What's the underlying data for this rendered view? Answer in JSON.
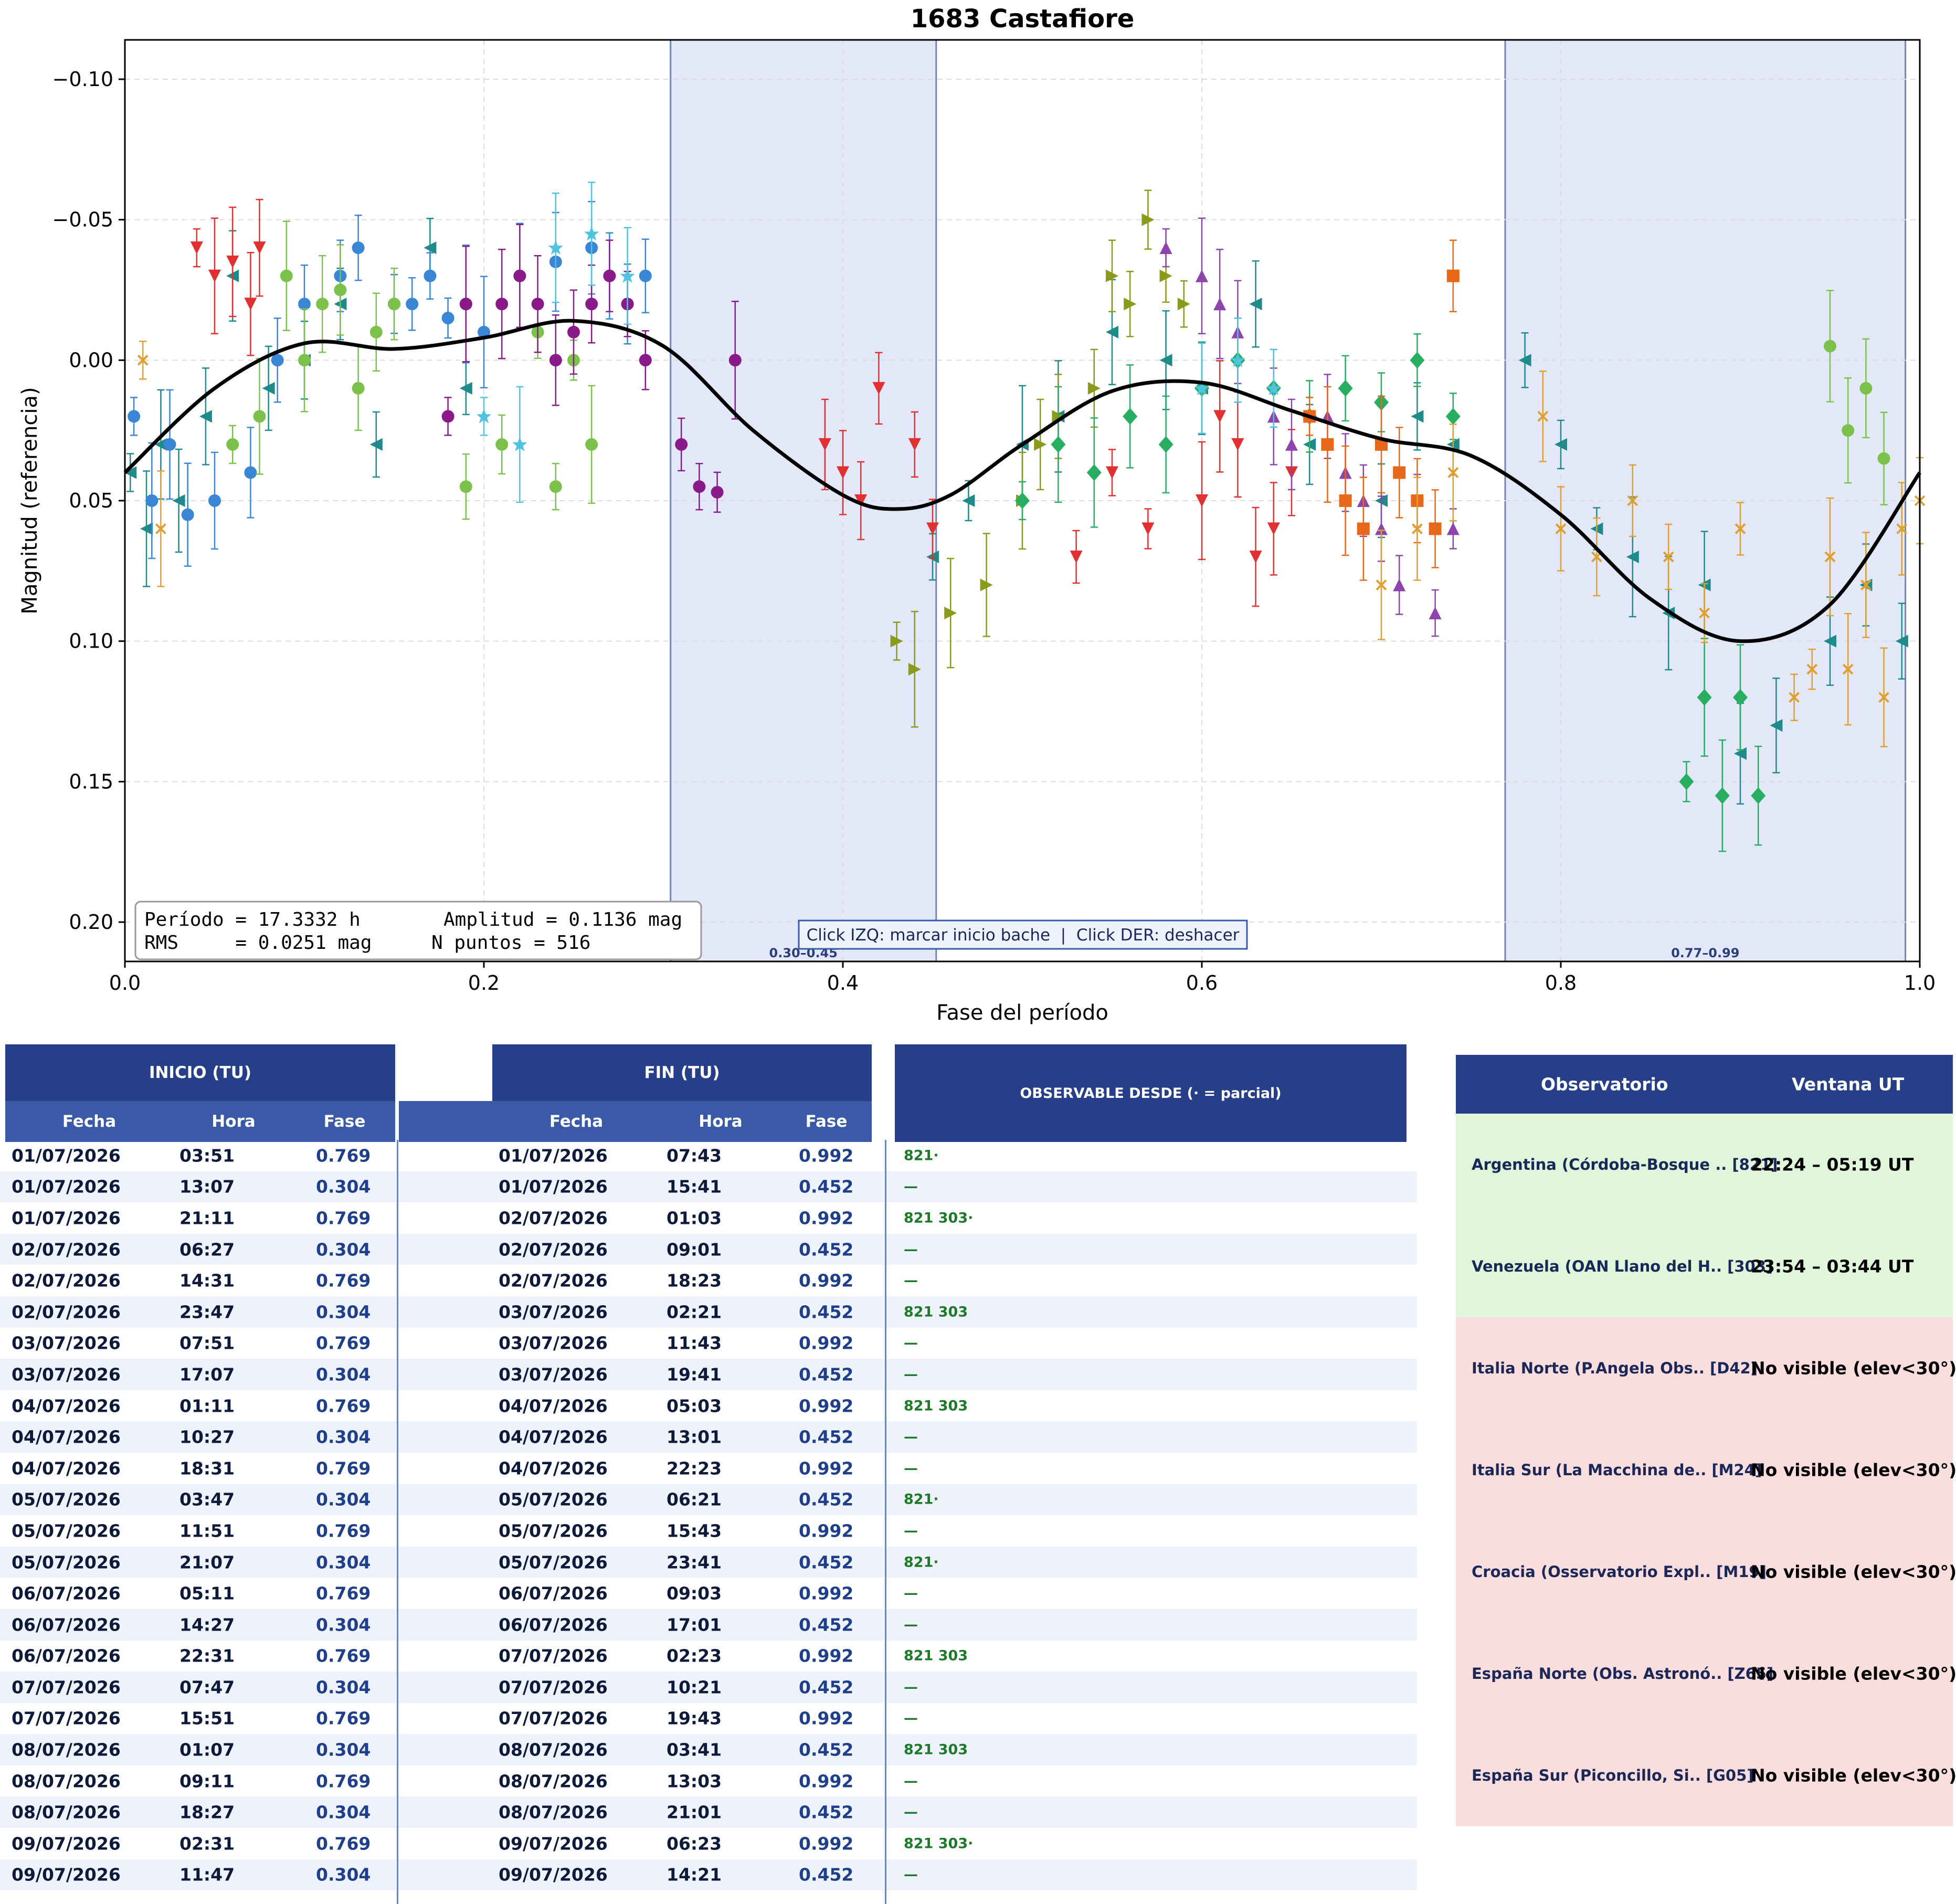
{
  "chart_data": {
    "type": "scatter",
    "title": "1683 Castafiore",
    "xlabel": "Fase del período",
    "ylabel": "Magnitud (referencia)",
    "xlim": [
      0.0,
      1.0
    ],
    "ylim": [
      0.214,
      -0.114
    ],
    "inverted_y": true,
    "grid": true,
    "xticks": [
      "0.0",
      "0.2",
      "0.4",
      "0.6",
      "0.8",
      "1.0"
    ],
    "yticks": [
      "−0.10",
      "−0.05",
      "0.00",
      "0.05",
      "0.10",
      "0.15",
      "0.20"
    ],
    "stats": [
      "Período = 17.3332 h",
      "Amplitud = 0.1136 mag",
      "RMS     = 0.0251 mag",
      "N puntos = 516"
    ],
    "hint": "Click IZQ: marcar inicio bache  |  Click DER: deshacer",
    "gaps": [
      {
        "label": "0.30–0.45",
        "start": 0.304,
        "end": 0.452
      },
      {
        "label": "0.77–0.99",
        "start": 0.769,
        "end": 0.992
      }
    ],
    "fit_curve": {
      "x": [
        0.0,
        0.05,
        0.1,
        0.15,
        0.2,
        0.25,
        0.3,
        0.35,
        0.4,
        0.43,
        0.46,
        0.5,
        0.55,
        0.6,
        0.65,
        0.7,
        0.75,
        0.8,
        0.85,
        0.9,
        0.95,
        1.0
      ],
      "y": [
        0.04,
        0.01,
        -0.006,
        -0.004,
        -0.008,
        -0.014,
        -0.005,
        0.025,
        0.048,
        0.053,
        0.048,
        0.03,
        0.011,
        0.008,
        0.018,
        0.028,
        0.034,
        0.055,
        0.085,
        0.1,
        0.087,
        0.04
      ]
    },
    "series": [
      {
        "color": "#1f8a8a",
        "marker": "tri-left",
        "x": [
          0.003,
          0.012,
          0.02,
          0.03,
          0.045,
          0.06,
          0.08,
          0.1,
          0.12,
          0.14,
          0.17,
          0.19,
          0.45,
          0.47,
          0.5,
          0.52,
          0.55,
          0.58,
          0.6,
          0.63,
          0.66,
          0.7,
          0.72,
          0.74,
          0.78,
          0.8,
          0.82,
          0.84,
          0.86,
          0.88,
          0.9,
          0.92,
          0.95,
          0.97,
          0.99
        ],
        "y": [
          0.04,
          0.06,
          0.03,
          0.05,
          0.02,
          -0.03,
          0.01,
          0.0,
          -0.02,
          0.03,
          -0.04,
          0.01,
          0.07,
          0.05,
          0.03,
          0.02,
          -0.01,
          0.0,
          0.01,
          -0.02,
          0.03,
          0.05,
          0.02,
          0.03,
          0.0,
          0.03,
          0.06,
          0.07,
          0.09,
          0.08,
          0.14,
          0.13,
          0.1,
          0.08,
          0.1
        ]
      },
      {
        "color": "#3a86d4",
        "marker": "circle",
        "x": [
          0.005,
          0.015,
          0.025,
          0.035,
          0.05,
          0.07,
          0.085,
          0.1,
          0.12,
          0.13,
          0.15,
          0.16,
          0.17,
          0.18,
          0.19,
          0.2,
          0.22,
          0.24,
          0.26,
          0.27,
          0.28,
          0.29
        ],
        "y": [
          0.02,
          0.05,
          0.03,
          0.055,
          0.05,
          0.04,
          0.0,
          -0.02,
          -0.03,
          -0.04,
          -0.02,
          -0.02,
          -0.03,
          -0.015,
          -0.02,
          -0.01,
          -0.03,
          -0.035,
          -0.04,
          -0.03,
          -0.02,
          -0.03
        ]
      },
      {
        "color": "#7cc24a",
        "marker": "hexagon",
        "x": [
          0.06,
          0.075,
          0.09,
          0.1,
          0.11,
          0.12,
          0.13,
          0.14,
          0.15,
          0.19,
          0.21,
          0.23,
          0.24,
          0.25,
          0.26,
          0.95,
          0.96,
          0.97,
          0.98
        ],
        "y": [
          0.03,
          0.02,
          -0.03,
          0.0,
          -0.02,
          -0.025,
          0.01,
          -0.01,
          -0.02,
          0.045,
          0.03,
          -0.01,
          0.045,
          0.0,
          0.03,
          -0.005,
          0.025,
          0.01,
          0.035
        ]
      },
      {
        "color": "#8a1a8a",
        "marker": "hexagon",
        "x": [
          0.18,
          0.19,
          0.21,
          0.22,
          0.23,
          0.24,
          0.25,
          0.26,
          0.27,
          0.28,
          0.29,
          0.31,
          0.32,
          0.33,
          0.34
        ],
        "y": [
          0.02,
          -0.02,
          -0.02,
          -0.03,
          -0.02,
          0.0,
          -0.01,
          -0.02,
          -0.03,
          -0.02,
          0.0,
          0.03,
          0.045,
          0.047,
          0.0
        ]
      },
      {
        "color": "#e03030",
        "marker": "tri-down",
        "x": [
          0.04,
          0.05,
          0.06,
          0.07,
          0.075,
          0.39,
          0.4,
          0.41,
          0.42,
          0.44,
          0.45,
          0.53,
          0.55,
          0.57,
          0.6,
          0.61,
          0.62,
          0.63,
          0.64,
          0.65
        ],
        "y": [
          -0.04,
          -0.03,
          -0.035,
          -0.02,
          -0.04,
          0.03,
          0.04,
          0.05,
          0.01,
          0.03,
          0.06,
          0.07,
          0.04,
          0.06,
          0.05,
          0.02,
          0.03,
          0.07,
          0.06,
          0.04
        ]
      },
      {
        "color": "#8a9a1a",
        "marker": "tri-right",
        "x": [
          0.43,
          0.44,
          0.46,
          0.48,
          0.5,
          0.51,
          0.52,
          0.54,
          0.55,
          0.56,
          0.57,
          0.58,
          0.59
        ],
        "y": [
          0.1,
          0.11,
          0.09,
          0.08,
          0.05,
          0.03,
          0.02,
          0.01,
          -0.03,
          -0.02,
          -0.05,
          -0.03,
          -0.02
        ]
      },
      {
        "color": "#8e44ad",
        "marker": "tri-up",
        "x": [
          0.58,
          0.6,
          0.61,
          0.62,
          0.64,
          0.65,
          0.67,
          0.68,
          0.69,
          0.7,
          0.71,
          0.72,
          0.73,
          0.74
        ],
        "y": [
          -0.04,
          -0.03,
          -0.02,
          -0.01,
          0.02,
          0.03,
          0.02,
          0.04,
          0.05,
          0.06,
          0.08,
          0.05,
          0.09,
          0.06
        ]
      },
      {
        "color": "#27ae60",
        "marker": "diamond",
        "x": [
          0.5,
          0.52,
          0.54,
          0.56,
          0.58,
          0.6,
          0.62,
          0.64,
          0.66,
          0.68,
          0.7,
          0.72,
          0.74,
          0.87,
          0.88,
          0.89,
          0.9,
          0.91
        ],
        "y": [
          0.05,
          0.03,
          0.04,
          0.02,
          0.03,
          0.01,
          0.0,
          0.01,
          0.02,
          0.01,
          0.015,
          0.0,
          0.02,
          0.15,
          0.12,
          0.155,
          0.12,
          0.155
        ]
      },
      {
        "color": "#e8681a",
        "marker": "square",
        "x": [
          0.66,
          0.67,
          0.68,
          0.69,
          0.7,
          0.71,
          0.72,
          0.73,
          0.74
        ],
        "y": [
          0.02,
          0.03,
          0.05,
          0.06,
          0.03,
          0.04,
          0.05,
          0.06,
          -0.03
        ]
      },
      {
        "color": "#e0a030",
        "marker": "x",
        "x": [
          0.01,
          0.02,
          0.7,
          0.72,
          0.74,
          0.79,
          0.8,
          0.82,
          0.84,
          0.86,
          0.88,
          0.9,
          0.93,
          0.94,
          0.95,
          0.96,
          0.97,
          0.98,
          0.99,
          1.0
        ],
        "y": [
          0.0,
          0.06,
          0.08,
          0.06,
          0.04,
          0.02,
          0.06,
          0.07,
          0.05,
          0.07,
          0.09,
          0.06,
          0.12,
          0.11,
          0.07,
          0.11,
          0.08,
          0.12,
          0.06,
          0.05
        ]
      },
      {
        "color": "#4fc3e0",
        "marker": "star",
        "x": [
          0.2,
          0.22,
          0.24,
          0.26,
          0.28,
          0.6,
          0.62,
          0.64
        ],
        "y": [
          0.02,
          0.03,
          -0.04,
          -0.045,
          -0.03,
          0.01,
          0.0,
          0.01
        ]
      }
    ]
  },
  "schedule": {
    "headers": {
      "inicio": "INICIO (TU)",
      "fin": "FIN (TU)",
      "observable": "OBSERVABLE DESDE  (· = parcial)",
      "fecha": "Fecha",
      "hora": "Hora",
      "fase": "Fase"
    },
    "rows": [
      [
        "01/07/2026",
        "03:51",
        "0.769",
        "01/07/2026",
        "07:43",
        "0.992",
        "821·"
      ],
      [
        "01/07/2026",
        "13:07",
        "0.304",
        "01/07/2026",
        "15:41",
        "0.452",
        "—"
      ],
      [
        "01/07/2026",
        "21:11",
        "0.769",
        "02/07/2026",
        "01:03",
        "0.992",
        "821 303·"
      ],
      [
        "02/07/2026",
        "06:27",
        "0.304",
        "02/07/2026",
        "09:01",
        "0.452",
        "—"
      ],
      [
        "02/07/2026",
        "14:31",
        "0.769",
        "02/07/2026",
        "18:23",
        "0.992",
        "—"
      ],
      [
        "02/07/2026",
        "23:47",
        "0.304",
        "03/07/2026",
        "02:21",
        "0.452",
        "821 303"
      ],
      [
        "03/07/2026",
        "07:51",
        "0.769",
        "03/07/2026",
        "11:43",
        "0.992",
        "—"
      ],
      [
        "03/07/2026",
        "17:07",
        "0.304",
        "03/07/2026",
        "19:41",
        "0.452",
        "—"
      ],
      [
        "04/07/2026",
        "01:11",
        "0.769",
        "04/07/2026",
        "05:03",
        "0.992",
        "821 303"
      ],
      [
        "04/07/2026",
        "10:27",
        "0.304",
        "04/07/2026",
        "13:01",
        "0.452",
        "—"
      ],
      [
        "04/07/2026",
        "18:31",
        "0.769",
        "04/07/2026",
        "22:23",
        "0.992",
        "—"
      ],
      [
        "05/07/2026",
        "03:47",
        "0.304",
        "05/07/2026",
        "06:21",
        "0.452",
        "821·"
      ],
      [
        "05/07/2026",
        "11:51",
        "0.769",
        "05/07/2026",
        "15:43",
        "0.992",
        "—"
      ],
      [
        "05/07/2026",
        "21:07",
        "0.304",
        "05/07/2026",
        "23:41",
        "0.452",
        "821·"
      ],
      [
        "06/07/2026",
        "05:11",
        "0.769",
        "06/07/2026",
        "09:03",
        "0.992",
        "—"
      ],
      [
        "06/07/2026",
        "14:27",
        "0.304",
        "06/07/2026",
        "17:01",
        "0.452",
        "—"
      ],
      [
        "06/07/2026",
        "22:31",
        "0.769",
        "07/07/2026",
        "02:23",
        "0.992",
        "821 303"
      ],
      [
        "07/07/2026",
        "07:47",
        "0.304",
        "07/07/2026",
        "10:21",
        "0.452",
        "—"
      ],
      [
        "07/07/2026",
        "15:51",
        "0.769",
        "07/07/2026",
        "19:43",
        "0.992",
        "—"
      ],
      [
        "08/07/2026",
        "01:07",
        "0.304",
        "08/07/2026",
        "03:41",
        "0.452",
        "821 303"
      ],
      [
        "08/07/2026",
        "09:11",
        "0.769",
        "08/07/2026",
        "13:03",
        "0.992",
        "—"
      ],
      [
        "08/07/2026",
        "18:27",
        "0.304",
        "08/07/2026",
        "21:01",
        "0.452",
        "—"
      ],
      [
        "09/07/2026",
        "02:31",
        "0.769",
        "09/07/2026",
        "06:23",
        "0.992",
        "821 303·"
      ],
      [
        "09/07/2026",
        "11:47",
        "0.304",
        "09/07/2026",
        "14:21",
        "0.452",
        "—"
      ]
    ]
  },
  "observatories": {
    "headers": {
      "observatorio": "Observatorio",
      "ventana": "Ventana UT"
    },
    "rows": [
      {
        "name": "Argentina (Córdoba-Bosque .. [821]",
        "window": "22:24 – 05:19 UT",
        "status": "visible"
      },
      {
        "name": "Venezuela (OAN Llano del H.. [303]",
        "window": "23:54 – 03:44 UT",
        "status": "visible"
      },
      {
        "name": "Italia Norte (P.Angela Obs.. [D42]",
        "window": "No visible (elev<30°)",
        "status": "not-visible"
      },
      {
        "name": "Italia Sur (La Macchina de.. [M24]",
        "window": "No visible (elev<30°)",
        "status": "not-visible"
      },
      {
        "name": "Croacia (Osservatorio Expl.. [M19]",
        "window": "No visible (elev<30°)",
        "status": "not-visible"
      },
      {
        "name": "España Norte (Obs. Astronó.. [Z65]",
        "window": "No visible (elev<30°)",
        "status": "not-visible"
      },
      {
        "name": "España Sur (Piconcillo, Si.. [G05]",
        "window": "No visible (elev<30°)",
        "status": "not-visible"
      }
    ],
    "colors": {
      "visible": "#e0f6da",
      "not-visible": "#fadede"
    }
  }
}
